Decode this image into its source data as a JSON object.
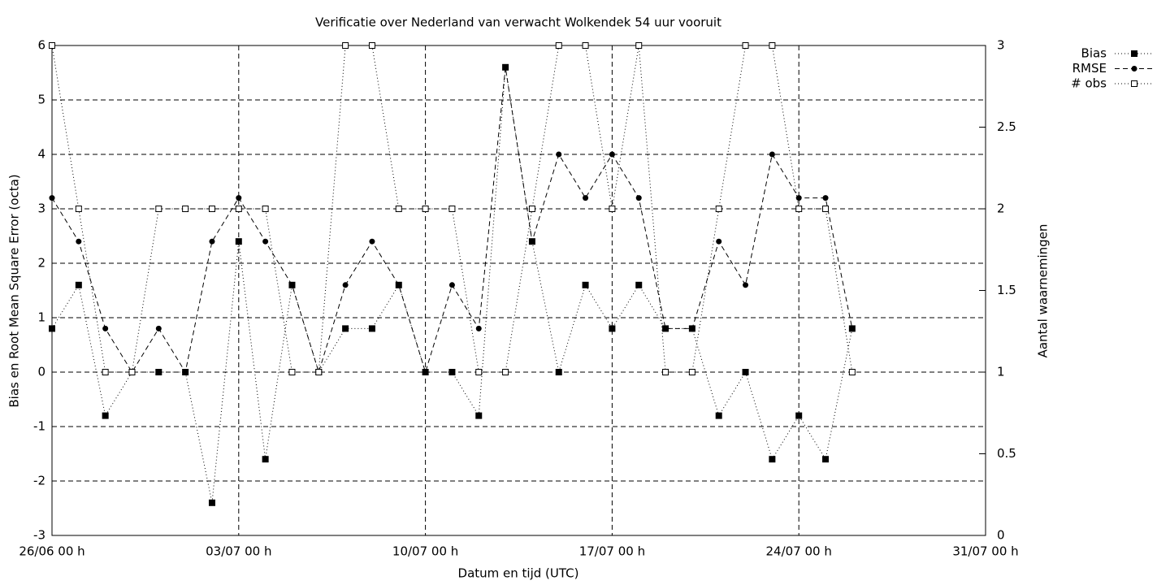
{
  "chart_data": {
    "type": "line",
    "title": "Verificatie over Nederland van verwacht Wolkendek 54 uur vooruit",
    "x_label": "Datum en tijd (UTC)",
    "y_label": "Bias en Root Mean Square Error (octa)",
    "y2_label": "Aantal waarnemingen",
    "x": [
      "26/06",
      "27/06",
      "28/06",
      "29/06",
      "30/06",
      "01/07",
      "02/07",
      "03/07",
      "04/07",
      "05/07",
      "06/07",
      "07/07",
      "08/07",
      "09/07",
      "10/07",
      "11/07",
      "12/07",
      "13/07",
      "14/07",
      "15/07",
      "16/07",
      "17/07",
      "18/07",
      "19/07",
      "20/07",
      "21/07",
      "22/07",
      "23/07",
      "24/07",
      "25/07",
      "26/07"
    ],
    "xlim": [
      "26/06",
      "31/07"
    ],
    "xticks": [
      {
        "value": "26/06",
        "label": "26/06 00 h"
      },
      {
        "value": "03/07",
        "label": "03/07 00 h"
      },
      {
        "value": "10/07",
        "label": "10/07 00 h"
      },
      {
        "value": "17/07",
        "label": "17/07 00 h"
      },
      {
        "value": "24/07",
        "label": "24/07 00 h"
      },
      {
        "value": "31/07",
        "label": "31/07 00 h"
      }
    ],
    "ylim": [
      -3,
      6
    ],
    "yticks": [
      -3,
      -2,
      -1,
      0,
      1,
      2,
      3,
      4,
      5,
      6
    ],
    "y2lim": [
      0,
      3
    ],
    "y2ticks": [
      0,
      0.5,
      1,
      1.5,
      2,
      2.5,
      3
    ],
    "grid": true,
    "legend": "top-right",
    "series": [
      {
        "name": "Bias",
        "color": "#000000",
        "marker": "filled-square",
        "dash": "1,3",
        "values": [
          0.8,
          1.6,
          -0.8,
          0,
          0,
          0,
          -2.4,
          2.4,
          -1.6,
          1.6,
          0,
          0.8,
          0.8,
          1.6,
          0,
          0,
          -0.8,
          5.6,
          2.4,
          0,
          1.6,
          0.8,
          1.6,
          0.8,
          0.8,
          -0.8,
          0,
          -1.6,
          -0.8,
          -1.6,
          0.8
        ]
      },
      {
        "name": "RMSE",
        "color": "#000000",
        "marker": "filled-circle",
        "dash": "6,4",
        "values": [
          3.2,
          2.4,
          0.8,
          0,
          0.8,
          0,
          2.4,
          3.2,
          2.4,
          1.6,
          0,
          1.6,
          2.4,
          1.6,
          0,
          1.6,
          0.8,
          5.6,
          2.4,
          4.0,
          3.2,
          4.0,
          3.2,
          0.8,
          0.8,
          2.4,
          1.6,
          4.0,
          3.2,
          3.2,
          0.8
        ]
      },
      {
        "name": "# obs",
        "color": "#000000",
        "marker": "open-square",
        "dash": "1,3",
        "axis": "y2",
        "values": [
          3,
          2,
          1,
          1,
          2,
          2,
          2,
          2,
          2,
          1,
          1,
          3,
          3,
          2,
          2,
          2,
          1,
          1,
          2,
          3,
          3,
          2,
          3,
          1,
          1,
          2,
          3,
          3,
          2,
          2,
          1
        ]
      }
    ]
  }
}
